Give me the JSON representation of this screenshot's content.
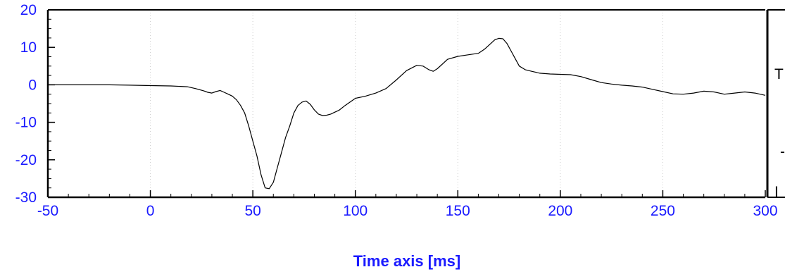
{
  "chart_data": {
    "type": "line",
    "title": "",
    "xlabel": "Time axis [ms]",
    "ylabel": "",
    "xlim": [
      -50,
      300
    ],
    "ylim": [
      -30,
      20
    ],
    "x_ticks": [
      -50,
      0,
      50,
      100,
      150,
      200,
      250,
      300
    ],
    "y_ticks": [
      -30,
      -20,
      -10,
      0,
      10,
      20
    ],
    "grid": "vertical dotted",
    "tick_label_color": "#1a1aff",
    "series": [
      {
        "color": "#000000",
        "x": [
          -50,
          -40,
          -30,
          -20,
          -10,
          0,
          10,
          18,
          22,
          26,
          28,
          30,
          32,
          34,
          36,
          38,
          40,
          42,
          44,
          46,
          48,
          50,
          52,
          54,
          56,
          58,
          60,
          62,
          64,
          66,
          68,
          70,
          72,
          74,
          76,
          78,
          80,
          82,
          84,
          86,
          88,
          90,
          92,
          95,
          100,
          105,
          110,
          115,
          120,
          125,
          130,
          133,
          136,
          138,
          140,
          145,
          150,
          155,
          160,
          163,
          166,
          168,
          170,
          172,
          174,
          176,
          178,
          180,
          183,
          186,
          190,
          195,
          200,
          205,
          210,
          215,
          220,
          225,
          230,
          235,
          240,
          245,
          250,
          255,
          260,
          265,
          270,
          275,
          280,
          285,
          290,
          295,
          300
        ],
        "y": [
          0,
          0,
          0,
          0,
          -0.1,
          -0.2,
          -0.3,
          -0.5,
          -1.0,
          -1.6,
          -2.0,
          -2.2,
          -1.8,
          -1.5,
          -2.0,
          -2.5,
          -3.0,
          -4.0,
          -5.5,
          -7.5,
          -11,
          -15,
          -19,
          -24,
          -27.5,
          -27.7,
          -26,
          -22,
          -18,
          -14,
          -11,
          -7.5,
          -5.5,
          -4.6,
          -4.3,
          -5.2,
          -6.7,
          -7.8,
          -8.2,
          -8.1,
          -7.8,
          -7.3,
          -6.8,
          -5.5,
          -3.6,
          -3.0,
          -2.2,
          -1.0,
          1.3,
          3.8,
          5.2,
          5.0,
          4.0,
          3.6,
          4.3,
          6.8,
          7.6,
          8.0,
          8.4,
          9.5,
          11.0,
          12.0,
          12.4,
          12.3,
          11.0,
          9.0,
          7.0,
          5.0,
          4.0,
          3.6,
          3.1,
          2.9,
          2.8,
          2.7,
          2.2,
          1.4,
          0.6,
          0.2,
          -0.1,
          -0.3,
          -0.6,
          -1.2,
          -1.8,
          -2.4,
          -2.5,
          -2.2,
          -1.7,
          -1.9,
          -2.5,
          -2.2,
          -1.9,
          -2.2,
          -2.8
        ]
      }
    ],
    "legend_fragments": [
      "T",
      "-",
      "I"
    ]
  }
}
